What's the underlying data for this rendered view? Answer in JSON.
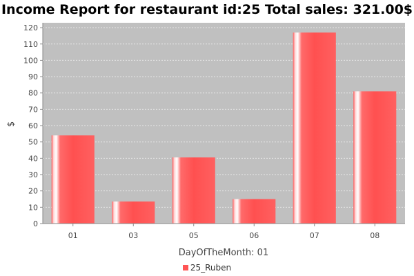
{
  "chart_data": {
    "type": "bar",
    "title": "Income Report for restaurant id:25 Total sales: 321.00$",
    "xlabel": "DayOfTheMonth: 01",
    "ylabel": "$",
    "categories": [
      "01",
      "03",
      "05",
      "06",
      "07",
      "08"
    ],
    "series": [
      {
        "name": "25_Ruben",
        "values": [
          54,
          13.5,
          40.5,
          15,
          117,
          81
        ]
      }
    ],
    "ylim": [
      0,
      123
    ],
    "yticks": [
      0,
      10,
      20,
      30,
      40,
      50,
      60,
      70,
      80,
      90,
      100,
      110,
      120
    ],
    "grid": true,
    "legend_position": "bottom",
    "colors": {
      "bar": "#ff5555",
      "plot_background": "#c0c0c0",
      "gridline": "#e8e8e8"
    }
  }
}
